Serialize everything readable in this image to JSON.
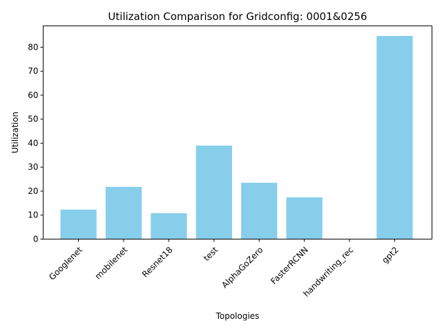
{
  "chart_data": {
    "type": "bar",
    "title": "Utilization Comparison for Gridconfig: 0001&0256",
    "xlabel": "Topologies",
    "ylabel": "Utilization",
    "categories": [
      "Googlenet",
      "mobilenet",
      "Resnet18",
      "test",
      "AlphaGoZero",
      "FasterRCNN",
      "handwriting_rec",
      "gpt2"
    ],
    "values": [
      12.3,
      21.8,
      10.8,
      39.0,
      23.5,
      17.4,
      0,
      84.7
    ],
    "ylim": [
      0,
      88.9
    ],
    "yticks": [
      0,
      10,
      20,
      30,
      40,
      50,
      60,
      70,
      80
    ],
    "bar_color": "#87CEEB",
    "grid": false,
    "legend": "none"
  }
}
